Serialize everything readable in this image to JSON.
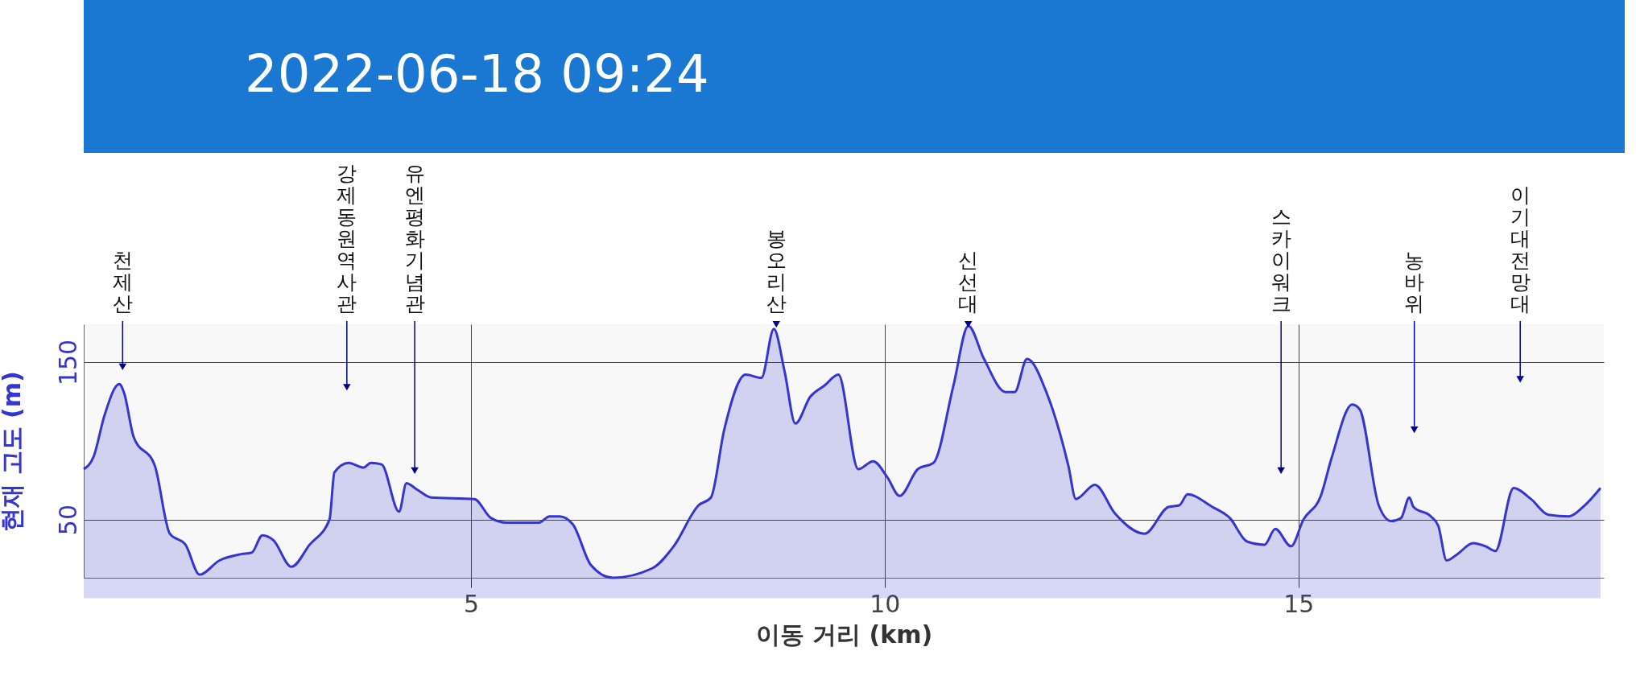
{
  "chart_data": {
    "type": "area",
    "title": "2022-06-18 09:24",
    "xlabel": "이동 거리 (km)",
    "ylabel": "현재 고도 (m)",
    "xlim": [
      0.32,
      18.69
    ],
    "ylim": [
      13,
      174
    ],
    "xticks": [
      5,
      10,
      15
    ],
    "yticks": [
      50,
      150
    ],
    "grid": true,
    "series": [
      {
        "color": "#3535d0",
        "x": [
          0.32,
          0.44,
          0.57,
          0.75,
          0.81,
          0.92,
          1.18,
          1.36,
          1.55,
          1.72,
          1.96,
          2.22,
          2.35,
          2.48,
          2.61,
          2.83,
          3.05,
          3.29,
          3.35,
          3.52,
          3.7,
          3.79,
          3.92,
          4.13,
          4.22,
          4.35,
          4.52,
          5.04,
          5.24,
          5.43,
          5.82,
          5.95,
          6.07,
          6.23,
          6.45,
          6.71,
          7.19,
          7.45,
          7.75,
          7.9,
          8.06,
          8.32,
          8.51,
          8.66,
          8.79,
          8.92,
          9.1,
          9.27,
          9.44,
          9.68,
          9.86,
          10.03,
          10.18,
          10.4,
          10.59,
          10.83,
          11.01,
          11.2,
          11.46,
          11.57,
          11.72,
          11.96,
          12.22,
          12.31,
          12.54,
          12.78,
          13.14,
          13.43,
          13.56,
          13.66,
          13.96,
          14.17,
          14.38,
          14.59,
          14.72,
          14.91,
          15.06,
          15.27,
          15.4,
          15.65,
          15.74,
          15.97,
          16.12,
          16.24,
          16.34,
          16.39,
          16.6,
          16.69,
          16.79,
          16.92,
          17.11,
          17.26,
          17.38,
          17.6,
          17.81,
          18.02,
          18.27,
          18.44,
          18.65
        ],
        "values": [
          82,
          90,
          116,
          136,
          130,
          103,
          84,
          41,
          34,
          15,
          24,
          28,
          29,
          40,
          37,
          20,
          34,
          50,
          80,
          86,
          83,
          86,
          85,
          55,
          73,
          69,
          64,
          63,
          51,
          48,
          48,
          52,
          52,
          47,
          21,
          13,
          19,
          33,
          59,
          64,
          107,
          142,
          140,
          171,
          144,
          111,
          128,
          135,
          142,
          82,
          87,
          77,
          65,
          82,
          86,
          135,
          173,
          152,
          131,
          131,
          152,
          130,
          84,
          63,
          72,
          54,
          41,
          58,
          59,
          66,
          58,
          51,
          36,
          34,
          44,
          33,
          50,
          65,
          89,
          123,
          120,
          59,
          49,
          51,
          64,
          58,
          52,
          46,
          24,
          28,
          35,
          33,
          30,
          70,
          63,
          53,
          52,
          58,
          70
        ]
      }
    ],
    "annotations": [
      {
        "text": "천제산",
        "x": 0.79,
        "y": 147
      },
      {
        "text": "강제동원역사관",
        "x": 3.5,
        "y": 134
      },
      {
        "text": "유엔평화기념관",
        "x": 4.32,
        "y": 81
      },
      {
        "text": "봉오리산",
        "x": 8.69,
        "y": 174
      },
      {
        "text": "신선대",
        "x": 11.01,
        "y": 174
      },
      {
        "text": "스카이워크",
        "x": 14.79,
        "y": 81
      },
      {
        "text": "농바위",
        "x": 16.4,
        "y": 107
      },
      {
        "text": "이기대전망대",
        "x": 17.68,
        "y": 139
      }
    ]
  }
}
